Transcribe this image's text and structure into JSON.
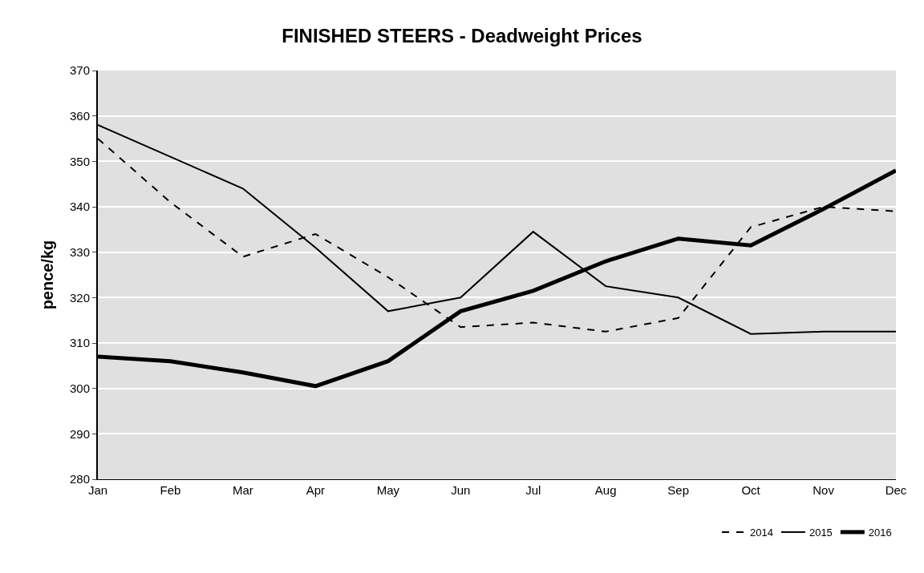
{
  "chart_data": {
    "type": "line",
    "title": "FINISHED STEERS - Deadweight Prices",
    "ylabel": "pence/kg",
    "categories": [
      "Jan",
      "Feb",
      "Mar",
      "Apr",
      "May",
      "Jun",
      "Jul",
      "Aug",
      "Sep",
      "Oct",
      "Nov",
      "Dec"
    ],
    "series": [
      {
        "name": "2014",
        "color": "#000000",
        "line_style": "dashed",
        "values": [
          355,
          341,
          329,
          334,
          324.5,
          313.5,
          314.5,
          312.5,
          315.5,
          335.5,
          340,
          339
        ]
      },
      {
        "name": "2015",
        "color": "#000000",
        "line_style": "solid",
        "values": [
          358,
          351,
          344,
          331,
          317,
          320,
          334.5,
          322.5,
          320,
          312,
          312.5,
          312.5
        ]
      },
      {
        "name": "2016",
        "color": "#000000",
        "line_style": "solid",
        "values": [
          307,
          306,
          303.5,
          300.5,
          306,
          317,
          321.5,
          328,
          333,
          331.5,
          339.5,
          348
        ]
      }
    ],
    "ylim": [
      280,
      370
    ],
    "yticks": [
      280,
      290,
      300,
      310,
      320,
      330,
      340,
      350,
      360,
      370
    ],
    "grid": "y",
    "legend": "bottom right",
    "marker": "none"
  }
}
